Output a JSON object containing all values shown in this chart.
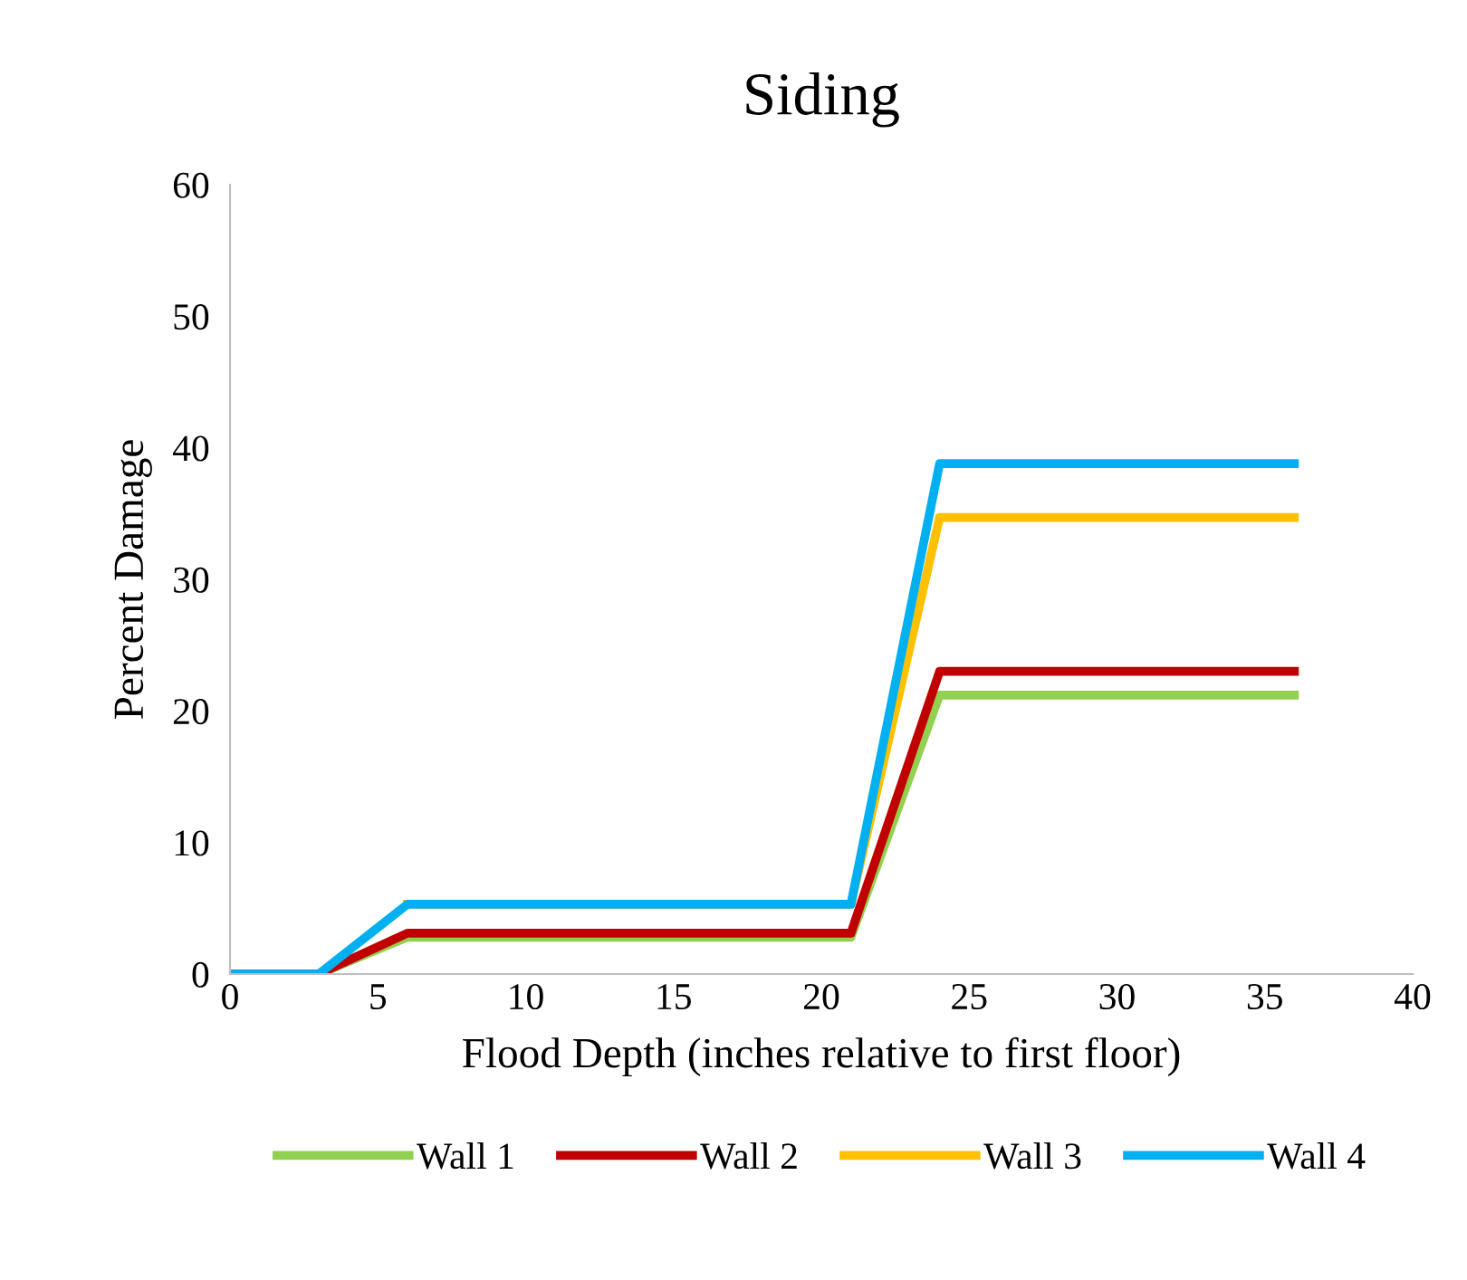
{
  "chart_data": {
    "type": "line",
    "title": "Siding",
    "xlabel": "Flood Depth (inches relative to first floor)",
    "ylabel": "Percent Damage",
    "x": [
      0,
      3,
      6,
      21,
      24,
      36
    ],
    "series": [
      {
        "name": "Wall 1",
        "color": "#92d050",
        "values": [
          0,
          0,
          2.8,
          2.8,
          21.2,
          21.2
        ]
      },
      {
        "name": "Wall 2",
        "color": "#c00000",
        "values": [
          0,
          0,
          3.1,
          3.1,
          23.0,
          23.0
        ]
      },
      {
        "name": "Wall 3",
        "color": "#ffc000",
        "values": [
          null,
          null,
          5.3,
          5.3,
          34.7,
          34.7
        ]
      },
      {
        "name": "Wall 4",
        "color": "#00b0f0",
        "values": [
          0,
          0,
          5.3,
          5.3,
          38.8,
          38.8
        ]
      }
    ],
    "xlim": [
      0,
      40
    ],
    "ylim": [
      0,
      60
    ],
    "xticks": [
      0,
      5,
      10,
      15,
      20,
      25,
      30,
      35,
      40
    ],
    "yticks": [
      0,
      10,
      20,
      30,
      40,
      50,
      60
    ],
    "grid": false,
    "legend": "bottom",
    "marker": "none",
    "line_style": "solid"
  }
}
